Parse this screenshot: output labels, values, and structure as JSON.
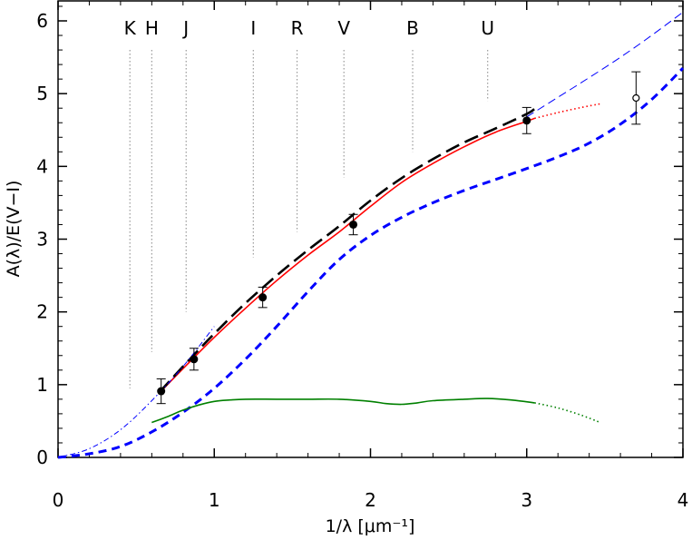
{
  "chart_data": {
    "type": "line",
    "xlabel": "1/λ [μm⁻¹]",
    "ylabel": "A(λ)/E(V−I)",
    "xlim": [
      0,
      4
    ],
    "ylim": [
      -0.2,
      6.2
    ],
    "x_ticks": [
      "0",
      "1",
      "2",
      "3",
      "4"
    ],
    "y_ticks": [
      "0",
      "1",
      "2",
      "3",
      "4",
      "5",
      "6"
    ],
    "bands": [
      {
        "label": "K",
        "x": 0.46
      },
      {
        "label": "H",
        "x": 0.6
      },
      {
        "label": "J",
        "x": 0.82
      },
      {
        "label": "I",
        "x": 1.25
      },
      {
        "label": "R",
        "x": 1.53
      },
      {
        "label": "V",
        "x": 1.83
      },
      {
        "label": "B",
        "x": 2.27
      },
      {
        "label": "U",
        "x": 2.75
      }
    ],
    "points": [
      {
        "x": 0.66,
        "y": 0.91,
        "err": 0.17,
        "filled": true
      },
      {
        "x": 0.87,
        "y": 1.35,
        "err": 0.15,
        "filled": true
      },
      {
        "x": 1.31,
        "y": 2.2,
        "err": 0.14,
        "filled": true
      },
      {
        "x": 1.89,
        "y": 3.2,
        "err": 0.14,
        "filled": true
      },
      {
        "x": 3.0,
        "y": 4.63,
        "err": 0.18,
        "filled": true
      },
      {
        "x": 3.7,
        "y": 4.94,
        "err": 0.36,
        "filled": false
      }
    ],
    "series": [
      {
        "color": "#ff0000",
        "style": "solid",
        "x": [
          0.66,
          0.8,
          1.0,
          1.2,
          1.4,
          1.6,
          1.8,
          2.0,
          2.2,
          2.4,
          2.6,
          2.8,
          3.0,
          3.05
        ],
        "y": [
          0.91,
          1.22,
          1.65,
          2.05,
          2.43,
          2.78,
          3.1,
          3.45,
          3.78,
          4.04,
          4.27,
          4.47,
          4.62,
          4.66
        ]
      },
      {
        "color": "#ff0000",
        "style": "dotted",
        "x": [
          3.05,
          3.2,
          3.35,
          3.47
        ],
        "y": [
          4.66,
          4.74,
          4.81,
          4.86
        ]
      },
      {
        "color": "#000000",
        "style": "long-dash",
        "x": [
          0.65,
          0.8,
          1.0,
          1.2,
          1.4,
          1.6,
          1.8,
          2.0,
          2.2,
          2.4,
          2.6,
          2.8,
          3.0,
          3.05
        ],
        "y": [
          0.9,
          1.25,
          1.7,
          2.12,
          2.5,
          2.85,
          3.18,
          3.53,
          3.84,
          4.1,
          4.33,
          4.52,
          4.72,
          4.79
        ]
      },
      {
        "color": "#0000ff",
        "style": "dash-dot",
        "x": [
          0.0,
          0.2,
          0.4,
          0.6,
          0.8,
          1.0
        ],
        "y": [
          0.0,
          0.12,
          0.38,
          0.78,
          1.25,
          1.8
        ]
      },
      {
        "color": "#0000ff",
        "style": "long-dash-thin",
        "x": [
          3.0,
          3.2,
          3.4,
          3.6,
          3.8,
          4.0
        ],
        "y": [
          4.68,
          4.95,
          5.22,
          5.5,
          5.8,
          6.12
        ]
      },
      {
        "color": "#0000ff",
        "style": "thick-dash",
        "x": [
          0.0,
          0.2,
          0.4,
          0.6,
          0.8,
          1.0,
          1.2,
          1.4,
          1.6,
          1.8,
          2.0,
          2.2,
          2.4,
          2.6,
          2.8,
          3.0,
          3.2,
          3.4,
          3.6,
          3.8,
          4.0
        ],
        "y": [
          0.0,
          0.05,
          0.15,
          0.35,
          0.62,
          0.95,
          1.35,
          1.8,
          2.28,
          2.72,
          3.05,
          3.3,
          3.5,
          3.67,
          3.82,
          3.97,
          4.13,
          4.32,
          4.58,
          4.92,
          5.35
        ]
      },
      {
        "color": "#008000",
        "style": "solid",
        "x": [
          0.6,
          0.7,
          0.8,
          0.9,
          1.0,
          1.1,
          1.2,
          1.4,
          1.6,
          1.8,
          2.0,
          2.1,
          2.2,
          2.3,
          2.4,
          2.6,
          2.75,
          2.9,
          3.05
        ],
        "y": [
          0.48,
          0.56,
          0.65,
          0.72,
          0.77,
          0.79,
          0.8,
          0.8,
          0.8,
          0.8,
          0.77,
          0.74,
          0.73,
          0.75,
          0.78,
          0.8,
          0.81,
          0.79,
          0.75
        ]
      },
      {
        "color": "#008000",
        "style": "dotted",
        "x": [
          3.05,
          3.2,
          3.35,
          3.47
        ],
        "y": [
          0.75,
          0.68,
          0.58,
          0.48
        ]
      }
    ]
  }
}
